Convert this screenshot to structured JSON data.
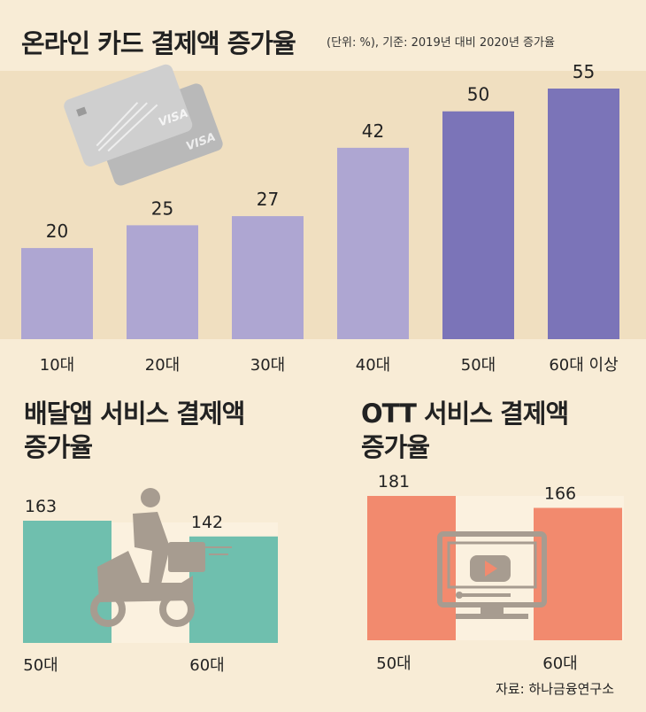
{
  "header": {
    "title": "온라인 카드 결제액 증가율",
    "note": "(단위: %), 기준: 2019년 대비 2020년 증가율"
  },
  "source": "자료: 하나금융연구소",
  "chart_data": [
    {
      "type": "bar",
      "title": "온라인 카드 결제액 증가율",
      "unit": "%",
      "categories": [
        "10대",
        "20대",
        "30대",
        "40대",
        "50대",
        "60대 이상"
      ],
      "values": [
        20,
        25,
        27,
        42,
        50,
        55
      ],
      "colors": [
        "#aea6d2",
        "#aea6d2",
        "#aea6d2",
        "#aea6d2",
        "#7b74b8",
        "#7b74b8"
      ],
      "ylim": [
        0,
        55
      ]
    },
    {
      "type": "bar",
      "title_lines": [
        "배달앱 서비스 결제액",
        "증가율"
      ],
      "unit": "%",
      "categories": [
        "50대",
        "60대"
      ],
      "values": [
        163,
        142
      ],
      "color": "#6fbfae",
      "ylim": [
        0,
        163
      ]
    },
    {
      "type": "bar",
      "title_lines": [
        "OTT 서비스 결제액",
        "증가율"
      ],
      "unit": "%",
      "categories": [
        "50대",
        "60대"
      ],
      "values": [
        181,
        166
      ],
      "color": "#f28a6e",
      "ylim": [
        0,
        181
      ]
    }
  ],
  "icons": {
    "card": "credit-card-icon",
    "scooter": "delivery-scooter-icon",
    "monitor": "video-monitor-icon"
  },
  "colors": {
    "background": "#f8ecd6",
    "band": "#f0dfc0",
    "inner_band": "#fbf1df"
  }
}
